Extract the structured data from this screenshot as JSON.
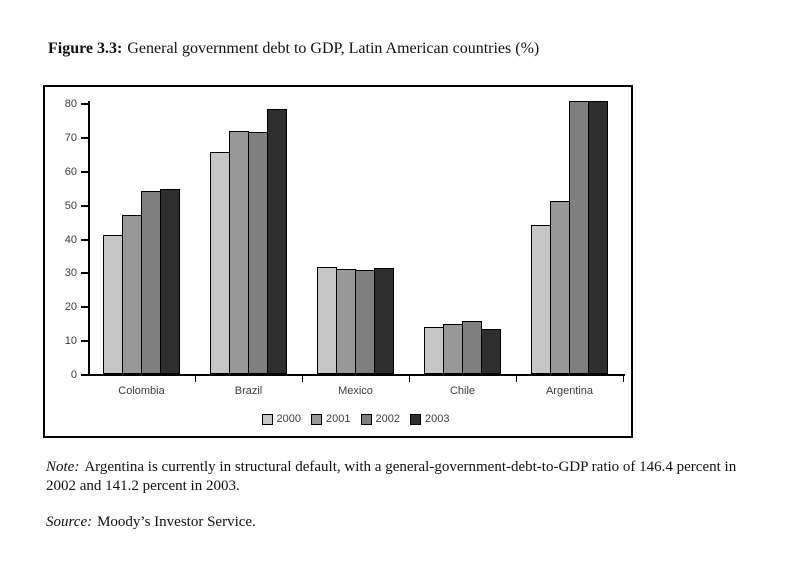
{
  "title": {
    "label": "Figure 3.3:",
    "text": "General government debt to GDP, Latin American countries (%)"
  },
  "chart_data": {
    "type": "bar",
    "categories": [
      "Colombia",
      "Brazil",
      "Mexico",
      "Chile",
      "Argentina"
    ],
    "series": [
      {
        "name": "2000",
        "color": "#c6c6c6",
        "values": [
          41.0,
          65.5,
          31.5,
          13.8,
          44.0
        ]
      },
      {
        "name": "2001",
        "color": "#989898",
        "values": [
          46.8,
          71.8,
          31.0,
          14.8,
          51.2
        ]
      },
      {
        "name": "2002",
        "color": "#7f7f7f",
        "values": [
          54.0,
          71.4,
          30.7,
          15.7,
          80.5
        ]
      },
      {
        "name": "2003",
        "color": "#2e2e2e",
        "values": [
          54.5,
          78.2,
          31.3,
          13.3,
          80.5
        ]
      }
    ],
    "ylim": [
      0,
      80
    ],
    "yticks": [
      0,
      10,
      20,
      30,
      40,
      50,
      60,
      70,
      80
    ],
    "grid": false,
    "legend_position": "bottom",
    "bars_clipped_at_axis_top": [
      "Argentina 2002",
      "Argentina 2003"
    ],
    "argentina_actual_values": {
      "2002": 146.4,
      "2003": 141.2
    }
  },
  "note": {
    "label": "Note:",
    "text": "Argentina is currently in structural default, with a general-government-debt-to-GDP ratio of 146.4 percent in 2002 and 141.2 percent in 2003."
  },
  "source": {
    "label": "Source:",
    "text": "Moody’s Investor Service."
  }
}
